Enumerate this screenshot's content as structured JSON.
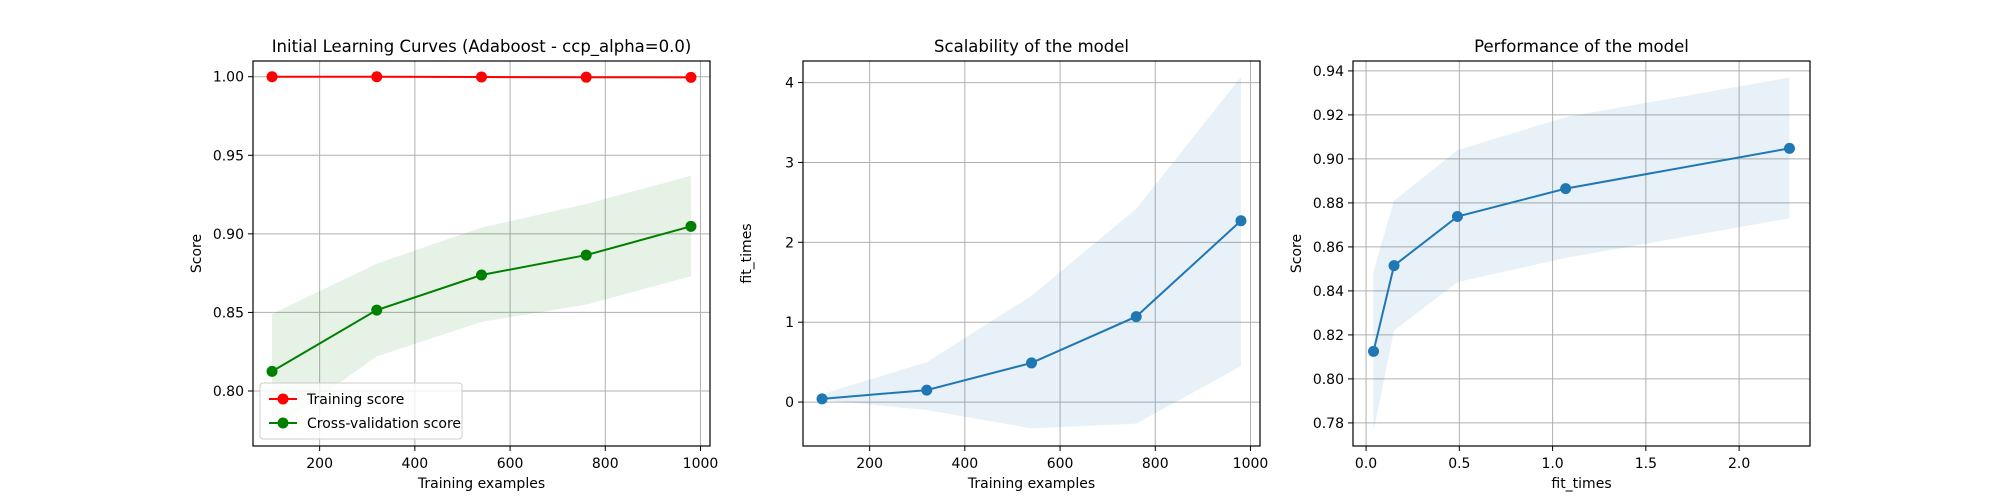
{
  "chart_data": [
    {
      "type": "line",
      "title": "Initial Learning Curves (Adaboost - ccp_alpha=0.0)",
      "xlabel": "Training examples",
      "ylabel": "Score",
      "xlim": [
        60,
        1020
      ],
      "ylim": [
        0.765,
        1.01
      ],
      "xticks": [
        200,
        400,
        600,
        800,
        1000
      ],
      "xtick_labels": [
        "200",
        "400",
        "600",
        "800",
        "1000"
      ],
      "yticks": [
        0.8,
        0.85,
        0.9,
        0.95,
        1.0
      ],
      "ytick_labels": [
        "0.80",
        "0.85",
        "0.90",
        "0.95",
        "1.00"
      ],
      "grid": true,
      "legend_position": "lower-left",
      "x": [
        100,
        320,
        540,
        760,
        980
      ],
      "series": [
        {
          "name": "Training score",
          "color": "#ff0000",
          "values": [
            1.0,
            1.0,
            0.9998,
            0.9997,
            0.9996
          ],
          "band_lower": [
            1.0,
            1.0,
            0.9996,
            0.9994,
            0.9993
          ],
          "band_upper": [
            1.0,
            1.0,
            1.0,
            1.0,
            0.9999
          ],
          "band_color": "#ff0000"
        },
        {
          "name": "Cross-validation score",
          "color": "#008000",
          "values": [
            0.8125,
            0.8515,
            0.8738,
            0.8865,
            0.9048
          ],
          "band_lower": [
            0.775,
            0.822,
            0.844,
            0.855,
            0.873
          ],
          "band_upper": [
            0.849,
            0.881,
            0.904,
            0.919,
            0.937
          ],
          "band_color": "#008000"
        }
      ]
    },
    {
      "type": "line",
      "title": "Scalability of the model",
      "xlabel": "Training examples",
      "ylabel": "fit_times",
      "xlim": [
        60,
        1020
      ],
      "ylim": [
        -0.55,
        4.27
      ],
      "xticks": [
        200,
        400,
        600,
        800,
        1000
      ],
      "xtick_labels": [
        "200",
        "400",
        "600",
        "800",
        "1000"
      ],
      "yticks": [
        0,
        1,
        2,
        3,
        4
      ],
      "ytick_labels": [
        "0",
        "1",
        "2",
        "3",
        "4"
      ],
      "grid": true,
      "x": [
        100,
        320,
        540,
        760,
        980
      ],
      "series": [
        {
          "name": "",
          "color": "#1f77b4",
          "values": [
            0.04,
            0.15,
            0.49,
            1.07,
            2.27
          ],
          "band_lower": [
            0.03,
            -0.1,
            -0.33,
            -0.27,
            0.45
          ],
          "band_upper": [
            0.1,
            0.5,
            1.33,
            2.42,
            4.07
          ],
          "band_color": "#1f77b4"
        }
      ]
    },
    {
      "type": "line",
      "title": "Performance of the model",
      "xlabel": "fit_times",
      "ylabel": "Score",
      "xlim": [
        -0.07,
        2.38
      ],
      "ylim": [
        0.7695,
        0.9445
      ],
      "xticks": [
        0.0,
        0.5,
        1.0,
        1.5,
        2.0
      ],
      "xtick_labels": [
        "0.0",
        "0.5",
        "1.0",
        "1.5",
        "2.0"
      ],
      "yticks": [
        0.78,
        0.8,
        0.82,
        0.84,
        0.86,
        0.88,
        0.9,
        0.92,
        0.94
      ],
      "ytick_labels": [
        "0.78",
        "0.80",
        "0.82",
        "0.84",
        "0.86",
        "0.88",
        "0.90",
        "0.92",
        "0.94"
      ],
      "grid": true,
      "x": [
        0.04,
        0.15,
        0.49,
        1.07,
        2.27
      ],
      "series": [
        {
          "name": "",
          "color": "#1f77b4",
          "values": [
            0.8125,
            0.8515,
            0.8738,
            0.8865,
            0.9048
          ],
          "band_lower": [
            0.776,
            0.822,
            0.844,
            0.855,
            0.873
          ],
          "band_upper": [
            0.849,
            0.881,
            0.904,
            0.919,
            0.937
          ],
          "band_color": "#1f77b4"
        }
      ]
    }
  ]
}
